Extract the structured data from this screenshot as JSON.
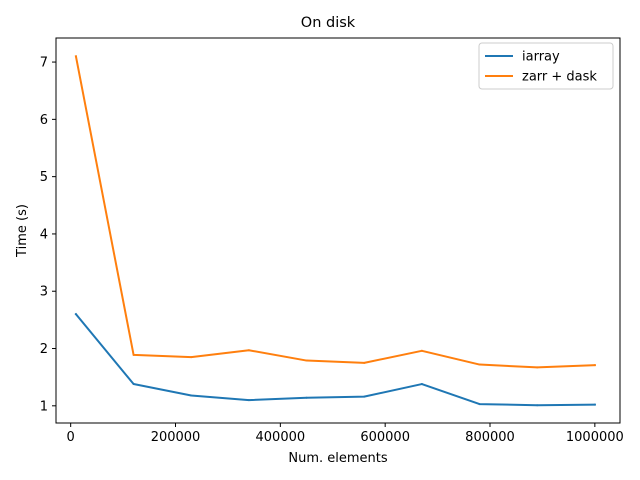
{
  "chart_data": {
    "type": "line",
    "title": "On disk",
    "xlabel": "Num. elements",
    "ylabel": "Time (s)",
    "xlim": [
      -28000,
      1048000
    ],
    "ylim": [
      0.7,
      7.42
    ],
    "xticks": [
      {
        "value": 200000,
        "label": "200000"
      },
      {
        "value": 400000,
        "label": "400000"
      },
      {
        "value": 600000,
        "label": "600000"
      },
      {
        "value": 800000,
        "label": "800000"
      },
      {
        "value": 1000000,
        "label": "1000000"
      }
    ],
    "zero_tick": {
      "value": 0,
      "label": "0"
    },
    "yticks": [
      {
        "value": 1,
        "label": "1"
      },
      {
        "value": 2,
        "label": "2"
      },
      {
        "value": 3,
        "label": "3"
      },
      {
        "value": 4,
        "label": "4"
      },
      {
        "value": 5,
        "label": "5"
      },
      {
        "value": 6,
        "label": "6"
      },
      {
        "value": 7,
        "label": "7"
      }
    ],
    "grid": false,
    "legend_position": "top-right",
    "x": [
      10000,
      120000,
      230000,
      340000,
      450000,
      560000,
      670000,
      780000,
      890000,
      1000000
    ],
    "series": [
      {
        "name": "iarray",
        "color": "#1f77b4",
        "values": [
          2.6,
          1.38,
          1.18,
          1.1,
          1.14,
          1.16,
          1.38,
          1.03,
          1.01,
          1.02
        ]
      },
      {
        "name": "zarr + dask",
        "color": "#ff7f0e",
        "values": [
          7.1,
          1.89,
          1.85,
          1.97,
          1.79,
          1.75,
          1.96,
          1.72,
          1.67,
          1.71
        ]
      }
    ]
  }
}
